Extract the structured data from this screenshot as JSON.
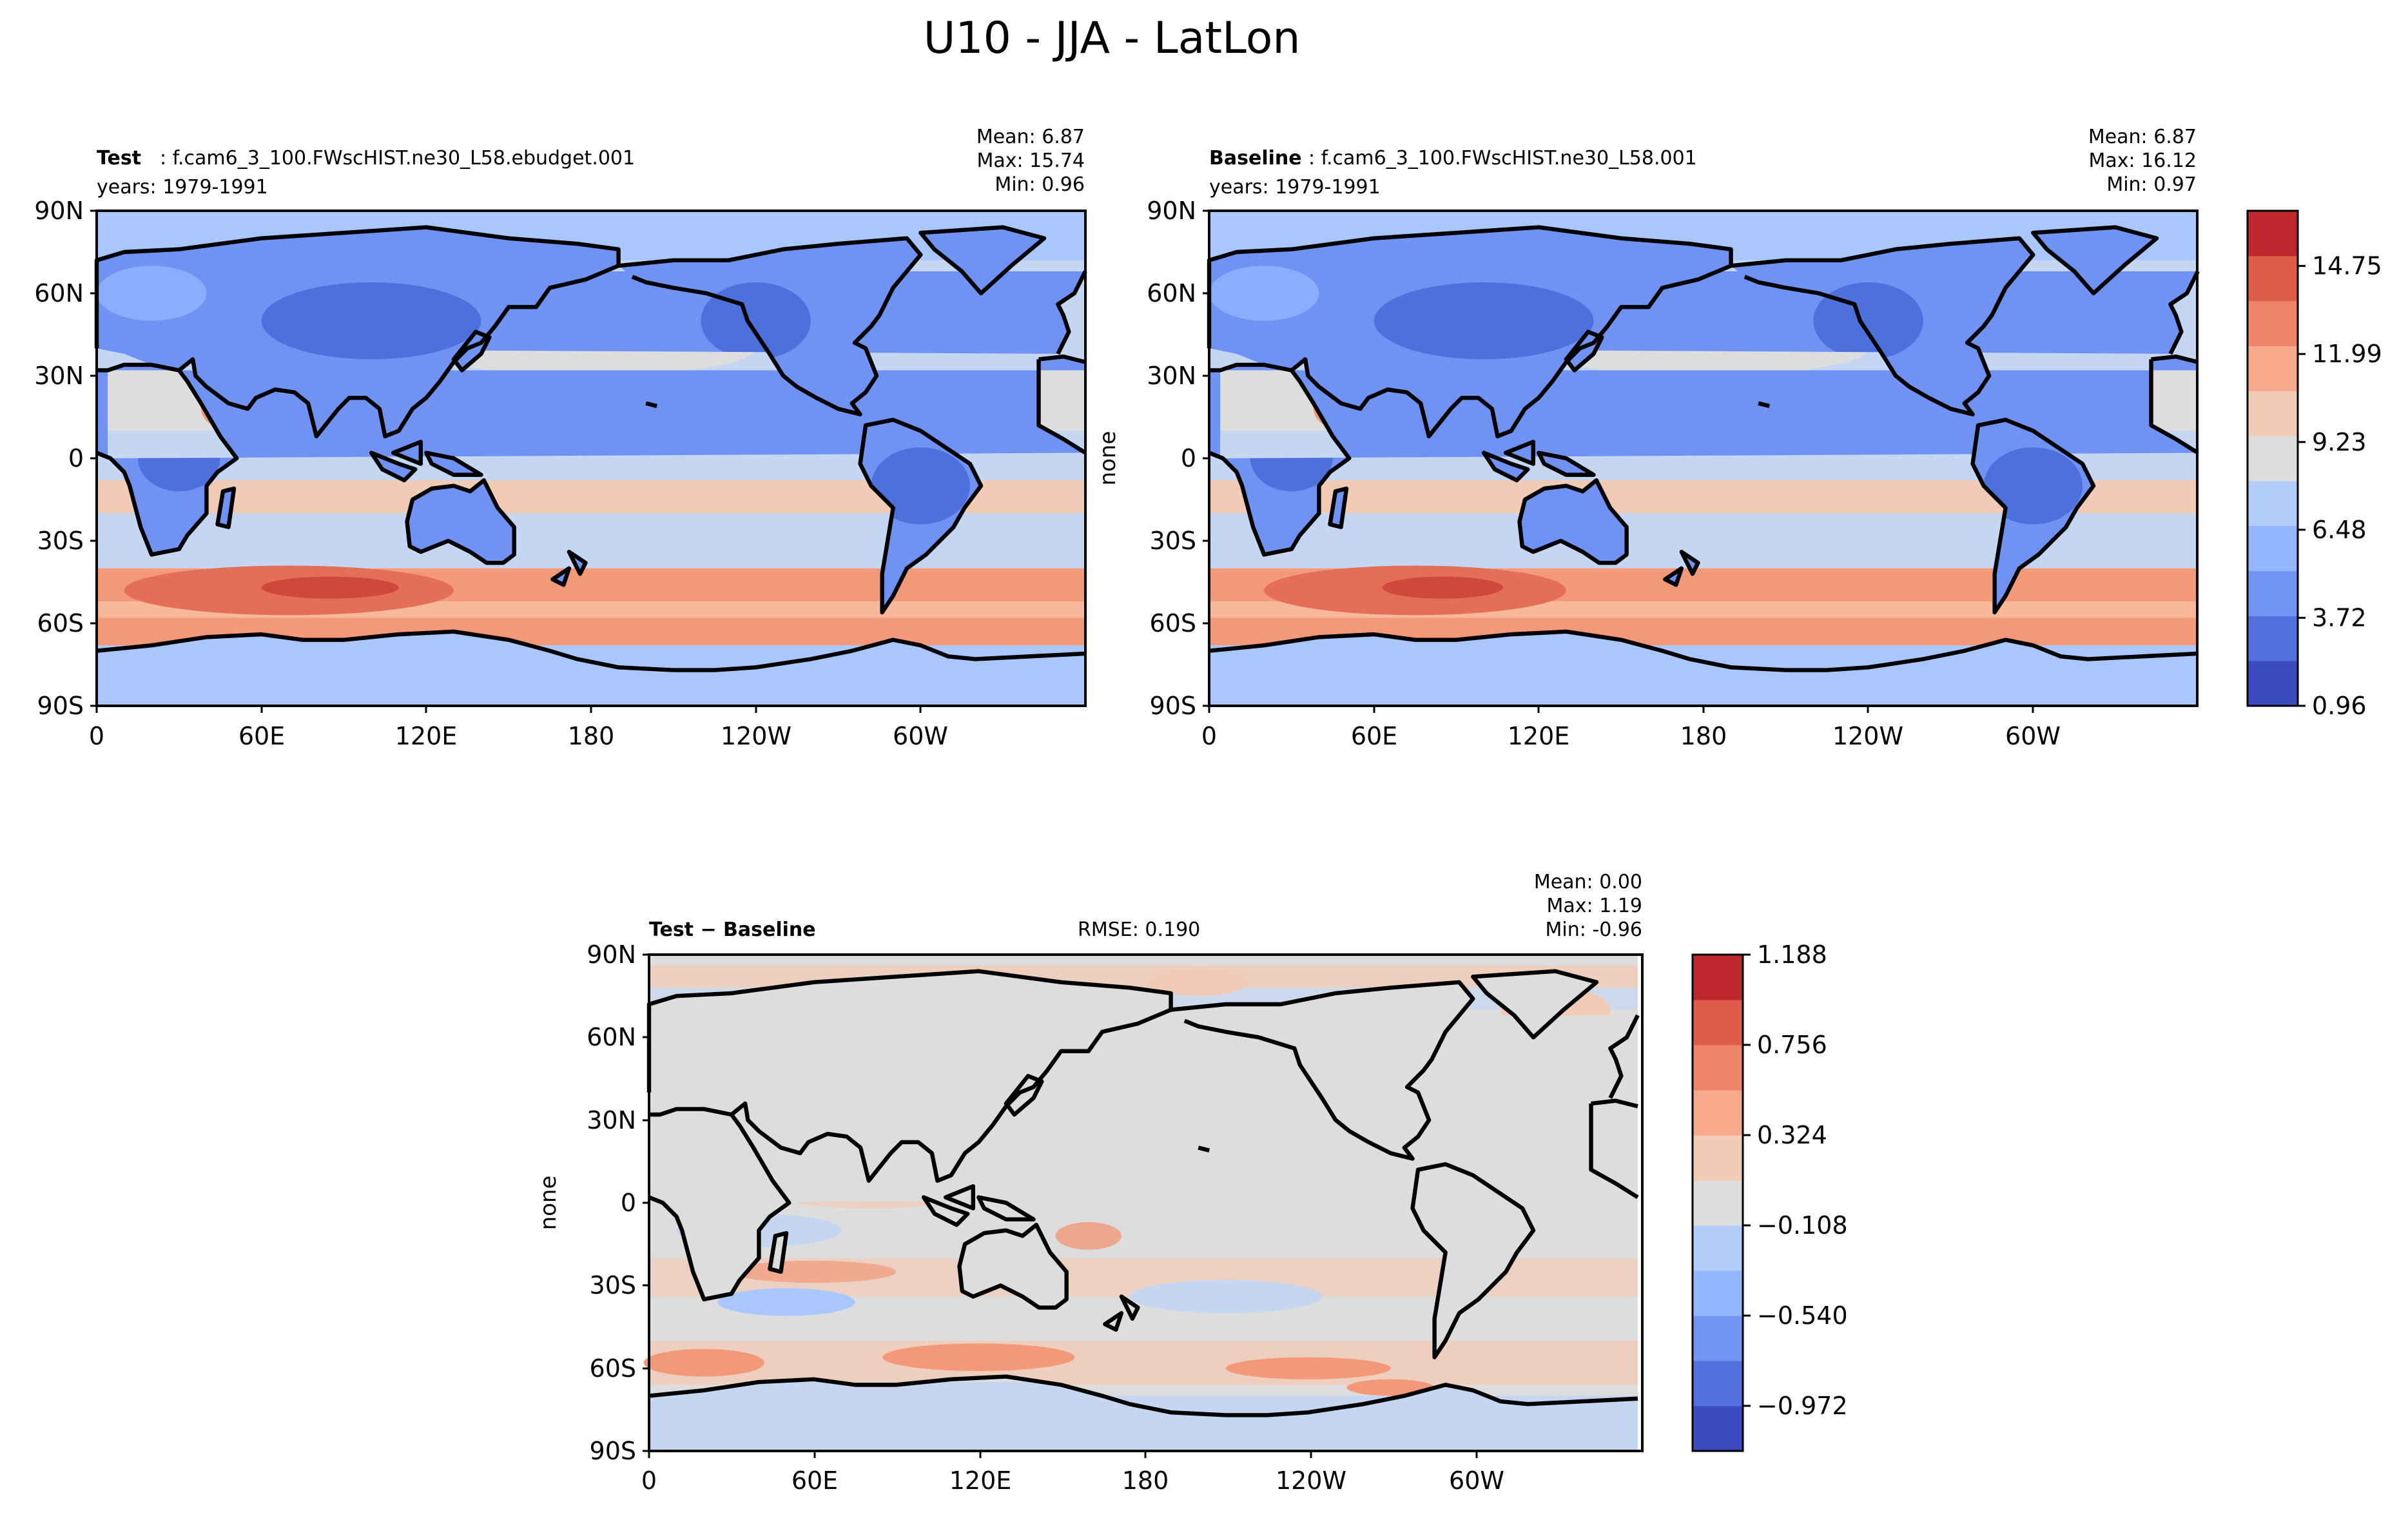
{
  "figure_title": "U10 - JJA - LatLon",
  "colors": {
    "blue_dark": "#3b4cc0",
    "red_dark": "#b40426",
    "neutral": "#dddddd",
    "coastline": "#000000"
  },
  "chart_data": [
    {
      "id": "test",
      "type": "heatmap",
      "projection": "latlon",
      "title_bold": "Test",
      "title_rest": ": f.cam6_3_100.FWscHIST.ne30_L58.ebudget.001",
      "years": "years: 1979-1991",
      "stats": [
        "Mean:  6.87",
        "Max: 15.74",
        "Min:  0.96"
      ],
      "ylabel": "",
      "xticks": [
        "0",
        "60E",
        "120E",
        "180",
        "120W",
        "60W"
      ],
      "xtick_lons": [
        0,
        60,
        120,
        180,
        240,
        300
      ],
      "xlim": [
        0,
        360
      ],
      "yticks": [
        "90N",
        "60N",
        "30N",
        "0",
        "30S",
        "60S",
        "90S"
      ],
      "ytick_lats": [
        90,
        60,
        30,
        0,
        -30,
        -60,
        -90
      ],
      "ylim": [
        -90,
        90
      ],
      "field_mean": 6.87,
      "field_max": 15.74,
      "field_min": 0.96
    },
    {
      "id": "baseline",
      "type": "heatmap",
      "projection": "latlon",
      "title_bold": "Baseline",
      "title_rest": ": f.cam6_3_100.FWscHIST.ne30_L58.001",
      "years": "years: 1979-1991",
      "stats": [
        "Mean:  6.87",
        "Max: 16.12",
        "Min:  0.97"
      ],
      "ylabel": "none",
      "xticks": [
        "0",
        "60E",
        "120E",
        "180",
        "120W",
        "60W"
      ],
      "xtick_lons": [
        0,
        60,
        120,
        180,
        240,
        300
      ],
      "xlim": [
        0,
        360
      ],
      "yticks": [
        "90N",
        "60N",
        "30N",
        "0",
        "30S",
        "60S",
        "90S"
      ],
      "ytick_lats": [
        90,
        60,
        30,
        0,
        -30,
        -60,
        -90
      ],
      "ylim": [
        -90,
        90
      ],
      "field_mean": 6.87,
      "field_max": 16.12,
      "field_min": 0.97,
      "colorbar": {
        "ticks": [
          "0.96",
          "3.72",
          "6.48",
          "9.23",
          "11.99",
          "14.75"
        ],
        "tick_values": [
          0.96,
          3.72,
          6.48,
          9.23,
          11.99,
          14.75
        ],
        "range": [
          0.96,
          16.48
        ],
        "levels": 11
      }
    },
    {
      "id": "diff",
      "type": "heatmap",
      "projection": "latlon",
      "title_bold": "Test − Baseline",
      "rmse": "RMSE: 0.190",
      "stats": [
        "Mean:  0.00",
        "Max:  1.19",
        "Min: -0.96"
      ],
      "ylabel": "none",
      "xticks": [
        "0",
        "60E",
        "120E",
        "180",
        "120W",
        "60W"
      ],
      "xtick_lons": [
        0,
        60,
        120,
        180,
        240,
        300
      ],
      "xlim": [
        0,
        360
      ],
      "yticks": [
        "90N",
        "60N",
        "30N",
        "0",
        "30S",
        "60S",
        "90S"
      ],
      "ytick_lats": [
        90,
        60,
        30,
        0,
        -30,
        -60,
        -90
      ],
      "ylim": [
        -90,
        90
      ],
      "field_mean": 0.0,
      "field_max": 1.19,
      "field_min": -0.96,
      "colorbar": {
        "ticks": [
          "1.188",
          "0.756",
          "0.324",
          "−0.108",
          "−0.540",
          "−0.972"
        ],
        "tick_values": [
          1.188,
          0.756,
          0.324,
          -0.108,
          -0.54,
          -0.972
        ],
        "range": [
          -1.188,
          1.188
        ],
        "levels": 11
      }
    }
  ]
}
